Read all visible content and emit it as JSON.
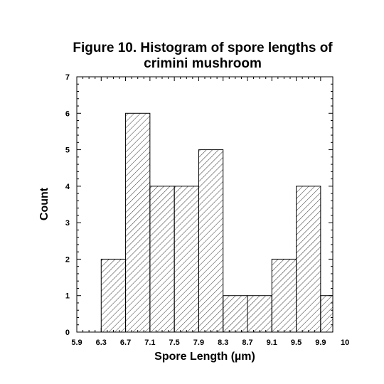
{
  "chart_data": {
    "type": "bar",
    "title_lines": [
      "Figure 10. Histogram of spore lengths of",
      "crimini mushroom"
    ],
    "xlabel": "Spore Length (µm)",
    "ylabel": "Count",
    "xlim": [
      5.9,
      10.1
    ],
    "ylim": [
      0,
      7
    ],
    "x_tick_labels": [
      "5.9",
      "6.3",
      "6.7",
      "7.1",
      "7.5",
      "7.9",
      "8.3",
      "8.7",
      "9.1",
      "9.5",
      "9.9",
      "10"
    ],
    "y_tick_labels": [
      "0",
      "1",
      "2",
      "3",
      "4",
      "5",
      "6",
      "7"
    ],
    "bins": [
      {
        "start": 6.3,
        "end": 6.7,
        "count": 2
      },
      {
        "start": 6.7,
        "end": 7.1,
        "count": 6
      },
      {
        "start": 7.1,
        "end": 7.5,
        "count": 4
      },
      {
        "start": 7.5,
        "end": 7.9,
        "count": 4
      },
      {
        "start": 7.9,
        "end": 8.3,
        "count": 5
      },
      {
        "start": 8.3,
        "end": 8.7,
        "count": 1
      },
      {
        "start": 8.7,
        "end": 9.1,
        "count": 1
      },
      {
        "start": 9.1,
        "end": 9.5,
        "count": 2
      },
      {
        "start": 9.5,
        "end": 9.9,
        "count": 4
      },
      {
        "start": 9.9,
        "end": 10.3,
        "count": 1
      }
    ],
    "fill": "diagonal-hatch",
    "grid": false,
    "minor_ticks_x_per_major": 4,
    "minor_ticks_y_per_major": 5
  }
}
